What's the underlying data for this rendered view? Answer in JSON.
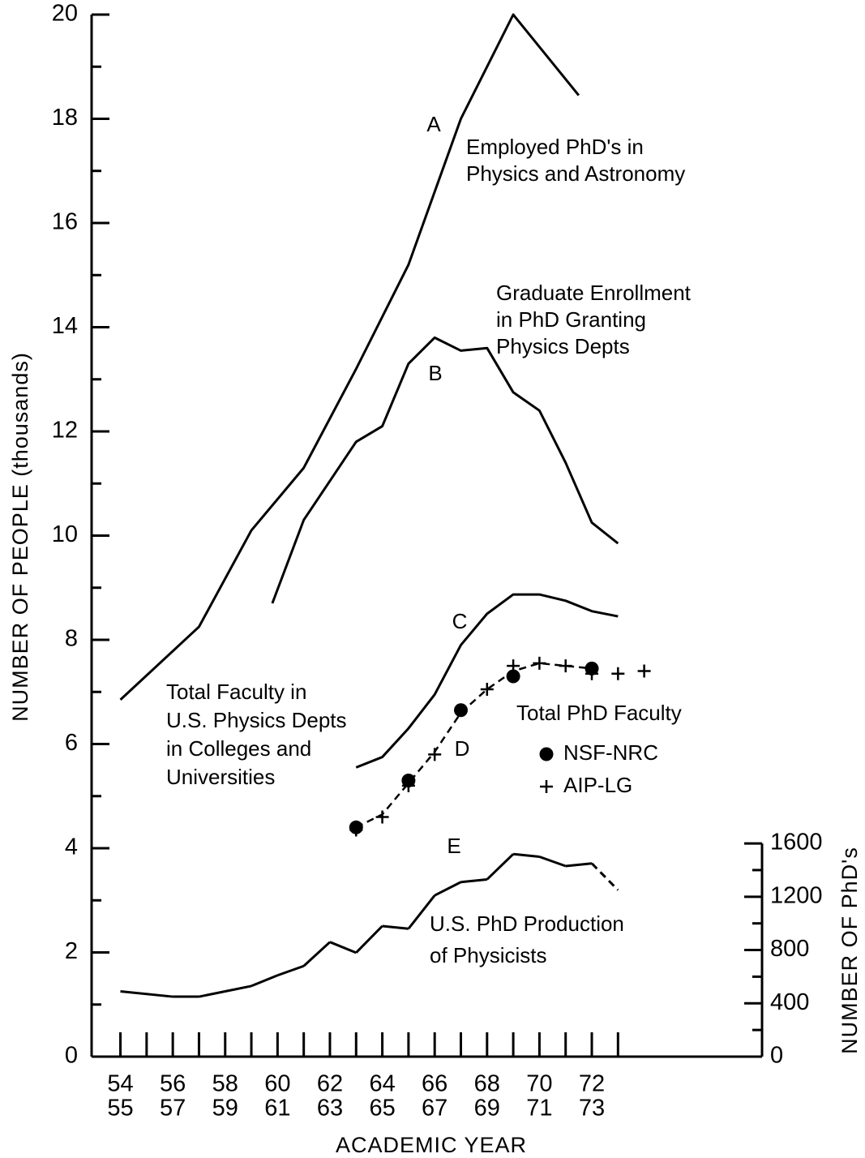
{
  "chart_data": {
    "type": "line",
    "xlabel": "ACADEMIC YEAR",
    "ylabel": "NUMBER OF PEOPLE (thousands)",
    "y2label": "NUMBER OF PhD's",
    "xlim": [
      52.9,
      78.5
    ],
    "xticks": [
      {
        "value": 54,
        "label": [
          "54",
          "55"
        ]
      },
      {
        "value": 56,
        "label": [
          "56",
          "57"
        ]
      },
      {
        "value": 58,
        "label": [
          "58",
          "59"
        ]
      },
      {
        "value": 60,
        "label": [
          "60",
          "61"
        ]
      },
      {
        "value": 62,
        "label": [
          "62",
          "63"
        ]
      },
      {
        "value": 64,
        "label": [
          "64",
          "65"
        ]
      },
      {
        "value": 66,
        "label": [
          "66",
          "67"
        ]
      },
      {
        "value": 68,
        "label": [
          "68",
          "69"
        ]
      },
      {
        "value": 70,
        "label": [
          "70",
          "71"
        ]
      },
      {
        "value": 72,
        "label": [
          "72",
          "73"
        ]
      }
    ],
    "xticks_minor": [
      55,
      57,
      59,
      61,
      63,
      65,
      67,
      69,
      71,
      73
    ],
    "ylim": [
      0,
      20
    ],
    "yticks": [
      0,
      2,
      4,
      6,
      8,
      10,
      12,
      14,
      16,
      18,
      20
    ],
    "yticks_minor": [
      1,
      3,
      5,
      7,
      9,
      11,
      13,
      15,
      17,
      19
    ],
    "y2lim": [
      0,
      7820
    ],
    "y2ticks": [
      0,
      400,
      800,
      1200,
      1600
    ],
    "y2ticks_minor": [
      200,
      600,
      1000,
      1400
    ],
    "color": "#000000",
    "series": [
      {
        "name": "A",
        "x": [
          54,
          57,
          59,
          61,
          63,
          65,
          67,
          69,
          71.5
        ],
        "values": [
          6.85,
          8.25,
          10.1,
          11.3,
          13.2,
          15.2,
          18.0,
          20.0,
          18.45
        ]
      },
      {
        "name": "B",
        "x": [
          59.8,
          61,
          63,
          64,
          65,
          66,
          67,
          68,
          69,
          70,
          71,
          72,
          73
        ],
        "values": [
          8.7,
          10.3,
          11.8,
          12.1,
          13.3,
          13.8,
          13.55,
          13.6,
          12.75,
          12.4,
          11.4,
          10.25,
          9.85
        ]
      },
      {
        "name": "C",
        "x": [
          63,
          64,
          65,
          66,
          67,
          68,
          69,
          70,
          71,
          72,
          73
        ],
        "values": [
          5.55,
          5.75,
          6.3,
          6.95,
          7.9,
          8.5,
          8.87,
          8.87,
          8.75,
          8.55,
          8.45
        ]
      },
      {
        "name": "D",
        "dashed": true,
        "x": [
          63,
          64,
          65,
          66,
          67,
          68,
          69,
          70,
          71,
          72
        ],
        "values": [
          4.4,
          4.65,
          5.25,
          5.85,
          6.6,
          7.05,
          7.4,
          7.55,
          7.5,
          7.45
        ]
      },
      {
        "name": "E",
        "axis": "y2",
        "dashed_from_x": 72,
        "x": [
          54,
          56,
          57,
          58,
          59,
          60,
          61,
          62,
          63,
          64,
          65,
          66,
          67,
          68,
          69,
          70,
          71,
          72,
          73
        ],
        "values": [
          490,
          450,
          450,
          490,
          530,
          610,
          680,
          860,
          780,
          980,
          960,
          1210,
          1310,
          1330,
          1520,
          1500,
          1430,
          1450,
          1250
        ]
      }
    ],
    "markers_title": "Total PhD Faculty",
    "markers": [
      {
        "name": "NSF-NRC",
        "marker": "dot",
        "x": [
          63,
          65,
          67,
          69,
          72
        ],
        "values": [
          4.4,
          5.3,
          6.65,
          7.3,
          7.45
        ]
      },
      {
        "name": "AIP-LG",
        "marker": "plus",
        "x": [
          63,
          64,
          65,
          66,
          68,
          69,
          70,
          71,
          72,
          73,
          74
        ],
        "values": [
          4.35,
          4.6,
          5.2,
          5.8,
          7.05,
          7.5,
          7.55,
          7.5,
          7.35,
          7.35,
          7.4
        ]
      }
    ],
    "annotations": [
      {
        "lines": [
          "Employed PhD's in",
          "Physics and Astronomy"
        ]
      },
      {
        "lines": [
          "Graduate Enrollment",
          "in PhD Granting",
          "Physics Depts"
        ]
      },
      {
        "lines": [
          "Total Faculty in",
          "U.S. Physics Depts",
          "in Colleges and",
          "Universities"
        ]
      },
      {
        "lines": [
          "U.S. PhD Production",
          "of Physicists"
        ]
      }
    ]
  }
}
